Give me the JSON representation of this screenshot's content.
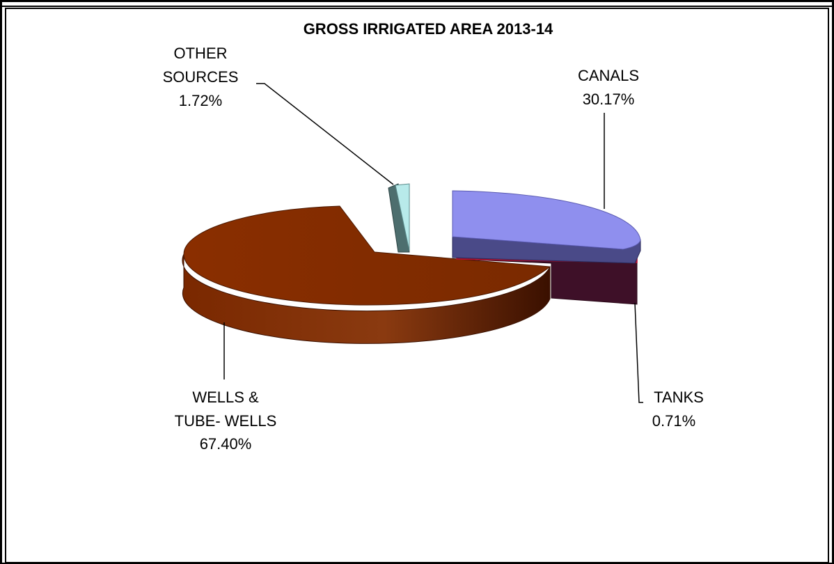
{
  "chart_data": {
    "type": "pie",
    "title": "GROSS IRRIGATED AREA 2013-14",
    "slices": [
      {
        "key": "canals",
        "label_lines": [
          "CANALS"
        ],
        "percent_label": "30.17%",
        "value": 30.17,
        "color": "#8f8fee"
      },
      {
        "key": "tanks",
        "label_lines": [
          "TANKS"
        ],
        "percent_label": "0.71%",
        "value": 0.71,
        "color": "#5a1a2e"
      },
      {
        "key": "wells",
        "label_lines": [
          "WELLS &",
          "TUBE- WELLS"
        ],
        "percent_label": "67.40%",
        "value": 67.4,
        "color": "#8b2a00"
      },
      {
        "key": "other",
        "label_lines": [
          "OTHER",
          "SOURCES"
        ],
        "percent_label": "1.72%",
        "value": 1.72,
        "color": "#b8eaea"
      }
    ],
    "legend": "none",
    "style": "3d-exploded"
  }
}
